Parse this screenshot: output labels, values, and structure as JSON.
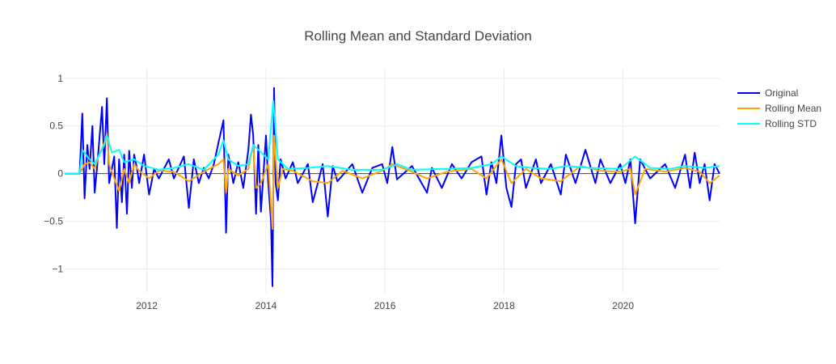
{
  "chart_data": {
    "type": "line",
    "title": "Rolling Mean and Standard Deviation",
    "xlabel": "",
    "ylabel": "",
    "x_range": [
      "2010-08-15",
      "2021-08-15"
    ],
    "ylim": [
      -1.25,
      1.1
    ],
    "x_ticks": [
      "2012",
      "2014",
      "2016",
      "2018",
      "2020"
    ],
    "y_ticks": [
      {
        "value": 1,
        "label": "1"
      },
      {
        "value": 0.5,
        "label": "0.5"
      },
      {
        "value": 0,
        "label": "0"
      },
      {
        "value": -0.5,
        "label": "−0.5"
      },
      {
        "value": -1,
        "label": "−1"
      }
    ],
    "grid": true,
    "legend_position": "top-right",
    "series": [
      {
        "name": "Original",
        "color": "#0000ff",
        "points": [
          [
            "2010-08-15",
            0
          ],
          [
            "2010-11-15",
            0
          ],
          [
            "2010-12-01",
            0.63
          ],
          [
            "2010-12-15",
            -0.26
          ],
          [
            "2011-01-01",
            0.3
          ],
          [
            "2011-01-15",
            0.05
          ],
          [
            "2011-02-01",
            0.5
          ],
          [
            "2011-02-15",
            -0.2
          ],
          [
            "2011-03-01",
            0.05
          ],
          [
            "2011-04-01",
            0.7
          ],
          [
            "2011-04-15",
            0.1
          ],
          [
            "2011-05-01",
            0.79
          ],
          [
            "2011-05-15",
            -0.1
          ],
          [
            "2011-06-15",
            0.18
          ],
          [
            "2011-07-01",
            -0.57
          ],
          [
            "2011-07-15",
            0.15
          ],
          [
            "2011-08-01",
            -0.3
          ],
          [
            "2011-08-15",
            0.2
          ],
          [
            "2011-09-01",
            -0.42
          ],
          [
            "2011-09-15",
            0.24
          ],
          [
            "2011-10-01",
            -0.15
          ],
          [
            "2011-10-15",
            0.2
          ],
          [
            "2011-11-01",
            0.06
          ],
          [
            "2011-11-15",
            -0.1
          ],
          [
            "2011-12-15",
            0.2
          ],
          [
            "2012-01-15",
            -0.22
          ],
          [
            "2012-02-15",
            0.05
          ],
          [
            "2012-03-15",
            -0.05
          ],
          [
            "2012-05-15",
            0.15
          ],
          [
            "2012-06-15",
            -0.05
          ],
          [
            "2012-08-15",
            0.18
          ],
          [
            "2012-09-15",
            -0.36
          ],
          [
            "2012-10-15",
            0.15
          ],
          [
            "2012-11-15",
            -0.1
          ],
          [
            "2012-12-15",
            0.06
          ],
          [
            "2013-01-15",
            -0.05
          ],
          [
            "2013-02-15",
            0.1
          ],
          [
            "2013-03-15",
            0.32
          ],
          [
            "2013-04-15",
            0.56
          ],
          [
            "2013-05-01",
            -0.62
          ],
          [
            "2013-05-15",
            0.2
          ],
          [
            "2013-06-15",
            -0.1
          ],
          [
            "2013-07-15",
            0.12
          ],
          [
            "2013-08-15",
            -0.15
          ],
          [
            "2013-09-15",
            0.25
          ],
          [
            "2013-10-01",
            0.62
          ],
          [
            "2013-10-15",
            0.4
          ],
          [
            "2013-11-01",
            -0.42
          ],
          [
            "2013-11-15",
            0.3
          ],
          [
            "2013-12-01",
            -0.4
          ],
          [
            "2014-01-01",
            0.4
          ],
          [
            "2014-01-15",
            -0.1
          ],
          [
            "2014-02-01",
            -0.5
          ],
          [
            "2014-02-10",
            -1.18
          ],
          [
            "2014-02-20",
            0.9
          ],
          [
            "2014-03-01",
            -0.1
          ],
          [
            "2014-03-15",
            -0.28
          ],
          [
            "2014-04-01",
            0.15
          ],
          [
            "2014-05-01",
            -0.05
          ],
          [
            "2014-06-15",
            0.12
          ],
          [
            "2014-07-15",
            -0.1
          ],
          [
            "2014-09-15",
            0.1
          ],
          [
            "2014-10-15",
            -0.3
          ],
          [
            "2014-11-15",
            -0.1
          ],
          [
            "2014-12-15",
            0.1
          ],
          [
            "2015-01-15",
            -0.45
          ],
          [
            "2015-02-15",
            0.08
          ],
          [
            "2015-03-15",
            -0.08
          ],
          [
            "2015-06-15",
            0.1
          ],
          [
            "2015-08-15",
            -0.2
          ],
          [
            "2015-10-15",
            0.06
          ],
          [
            "2015-12-15",
            0.1
          ],
          [
            "2016-01-15",
            -0.1
          ],
          [
            "2016-02-15",
            0.28
          ],
          [
            "2016-03-15",
            -0.06
          ],
          [
            "2016-06-15",
            0.08
          ],
          [
            "2016-09-15",
            -0.2
          ],
          [
            "2016-10-15",
            0.06
          ],
          [
            "2016-12-15",
            -0.15
          ],
          [
            "2017-02-15",
            0.1
          ],
          [
            "2017-04-15",
            -0.05
          ],
          [
            "2017-06-15",
            0.12
          ],
          [
            "2017-08-15",
            0.18
          ],
          [
            "2017-09-15",
            -0.22
          ],
          [
            "2017-10-15",
            0.12
          ],
          [
            "2017-11-15",
            -0.1
          ],
          [
            "2017-12-15",
            0.4
          ],
          [
            "2018-01-15",
            -0.15
          ],
          [
            "2018-02-15",
            -0.35
          ],
          [
            "2018-03-15",
            0.1
          ],
          [
            "2018-04-15",
            0.15
          ],
          [
            "2018-05-15",
            -0.15
          ],
          [
            "2018-07-15",
            0.15
          ],
          [
            "2018-08-15",
            -0.1
          ],
          [
            "2018-10-15",
            0.1
          ],
          [
            "2018-12-15",
            -0.22
          ],
          [
            "2019-01-15",
            0.2
          ],
          [
            "2019-03-15",
            -0.1
          ],
          [
            "2019-05-15",
            0.25
          ],
          [
            "2019-07-15",
            -0.1
          ],
          [
            "2019-08-15",
            0.15
          ],
          [
            "2019-10-15",
            -0.1
          ],
          [
            "2019-12-15",
            0.1
          ],
          [
            "2020-01-15",
            -0.1
          ],
          [
            "2020-02-15",
            0.15
          ],
          [
            "2020-03-15",
            -0.52
          ],
          [
            "2020-04-15",
            0.15
          ],
          [
            "2020-06-15",
            -0.05
          ],
          [
            "2020-09-15",
            0.1
          ],
          [
            "2020-11-15",
            -0.15
          ],
          [
            "2021-01-15",
            0.2
          ],
          [
            "2021-02-15",
            -0.15
          ],
          [
            "2021-03-15",
            0.22
          ],
          [
            "2021-04-15",
            -0.1
          ],
          [
            "2021-05-15",
            0.1
          ],
          [
            "2021-06-15",
            -0.28
          ],
          [
            "2021-07-15",
            0.1
          ],
          [
            "2021-08-15",
            0.0
          ]
        ]
      },
      {
        "name": "Rolling Mean",
        "color": "#ffa500",
        "points": [
          [
            "2010-08-15",
            0
          ],
          [
            "2010-11-15",
            0
          ],
          [
            "2010-12-15",
            0.1
          ],
          [
            "2011-01-15",
            0.12
          ],
          [
            "2011-02-15",
            0.05
          ],
          [
            "2011-03-15",
            0.2
          ],
          [
            "2011-04-15",
            0.32
          ],
          [
            "2011-05-01",
            0.42
          ],
          [
            "2011-05-15",
            0.1
          ],
          [
            "2011-06-15",
            -0.05
          ],
          [
            "2011-07-15",
            -0.18
          ],
          [
            "2011-08-15",
            0.05
          ],
          [
            "2011-09-15",
            -0.1
          ],
          [
            "2011-10-15",
            0.1
          ],
          [
            "2011-11-15",
            0.03
          ],
          [
            "2012-01-15",
            -0.05
          ],
          [
            "2012-03-15",
            0.03
          ],
          [
            "2012-06-15",
            0.02
          ],
          [
            "2012-09-15",
            -0.08
          ],
          [
            "2012-12-15",
            0.02
          ],
          [
            "2013-03-15",
            0.1
          ],
          [
            "2013-04-15",
            0.15
          ],
          [
            "2013-05-01",
            -0.2
          ],
          [
            "2013-05-15",
            0.05
          ],
          [
            "2013-07-15",
            -0.02
          ],
          [
            "2013-09-15",
            0.05
          ],
          [
            "2013-10-15",
            0.3
          ],
          [
            "2013-11-01",
            -0.15
          ],
          [
            "2013-12-01",
            -0.1
          ],
          [
            "2014-01-15",
            0.1
          ],
          [
            "2014-02-10",
            -0.58
          ],
          [
            "2014-02-20",
            0.4
          ],
          [
            "2014-03-15",
            -0.15
          ],
          [
            "2014-04-15",
            0.05
          ],
          [
            "2014-06-15",
            0.03
          ],
          [
            "2014-10-15",
            -0.08
          ],
          [
            "2015-01-15",
            -0.1
          ],
          [
            "2015-04-15",
            0.03
          ],
          [
            "2015-08-15",
            -0.05
          ],
          [
            "2015-12-15",
            0.03
          ],
          [
            "2016-02-15",
            0.1
          ],
          [
            "2016-06-15",
            0.02
          ],
          [
            "2016-09-15",
            -0.05
          ],
          [
            "2017-01-15",
            0.02
          ],
          [
            "2017-06-15",
            0.05
          ],
          [
            "2017-09-15",
            -0.05
          ],
          [
            "2017-12-15",
            0.15
          ],
          [
            "2018-02-15",
            -0.1
          ],
          [
            "2018-05-15",
            0.05
          ],
          [
            "2018-08-15",
            -0.05
          ],
          [
            "2018-12-15",
            -0.08
          ],
          [
            "2019-04-15",
            0.08
          ],
          [
            "2019-08-15",
            0.03
          ],
          [
            "2019-12-15",
            0.02
          ],
          [
            "2020-02-15",
            0.05
          ],
          [
            "2020-03-15",
            -0.22
          ],
          [
            "2020-05-15",
            0.05
          ],
          [
            "2020-09-15",
            0.02
          ],
          [
            "2021-01-15",
            0.06
          ],
          [
            "2021-04-15",
            0.02
          ],
          [
            "2021-06-15",
            -0.1
          ],
          [
            "2021-08-15",
            -0.02
          ]
        ]
      },
      {
        "name": "Rolling STD",
        "color": "#00ffff",
        "points": [
          [
            "2010-08-15",
            0
          ],
          [
            "2010-11-15",
            0
          ],
          [
            "2010-12-01",
            0.25
          ],
          [
            "2011-01-15",
            0.15
          ],
          [
            "2011-02-15",
            0.1
          ],
          [
            "2011-03-15",
            0.2
          ],
          [
            "2011-04-15",
            0.3
          ],
          [
            "2011-05-01",
            0.4
          ],
          [
            "2011-06-01",
            0.22
          ],
          [
            "2011-07-15",
            0.25
          ],
          [
            "2011-08-15",
            0.12
          ],
          [
            "2011-10-15",
            0.15
          ],
          [
            "2011-12-15",
            0.08
          ],
          [
            "2012-03-15",
            0.04
          ],
          [
            "2012-06-15",
            0.06
          ],
          [
            "2012-09-15",
            0.1
          ],
          [
            "2012-12-15",
            0.04
          ],
          [
            "2013-03-15",
            0.2
          ],
          [
            "2013-04-15",
            0.35
          ],
          [
            "2013-05-15",
            0.15
          ],
          [
            "2013-07-15",
            0.08
          ],
          [
            "2013-09-15",
            0.1
          ],
          [
            "2013-10-15",
            0.3
          ],
          [
            "2013-11-15",
            0.25
          ],
          [
            "2014-01-15",
            0.15
          ],
          [
            "2014-02-15",
            0.76
          ],
          [
            "2014-03-15",
            0.15
          ],
          [
            "2014-05-15",
            0.05
          ],
          [
            "2014-09-15",
            0.06
          ],
          [
            "2015-01-15",
            0.08
          ],
          [
            "2015-06-15",
            0.04
          ],
          [
            "2015-12-15",
            0.04
          ],
          [
            "2016-03-15",
            0.1
          ],
          [
            "2016-06-15",
            0.04
          ],
          [
            "2017-01-15",
            0.05
          ],
          [
            "2017-06-15",
            0.06
          ],
          [
            "2017-10-15",
            0.1
          ],
          [
            "2017-12-15",
            0.18
          ],
          [
            "2018-03-15",
            0.08
          ],
          [
            "2018-06-15",
            0.06
          ],
          [
            "2018-10-15",
            0.05
          ],
          [
            "2019-01-15",
            0.08
          ],
          [
            "2019-06-15",
            0.06
          ],
          [
            "2019-12-15",
            0.05
          ],
          [
            "2020-03-15",
            0.18
          ],
          [
            "2020-06-15",
            0.06
          ],
          [
            "2020-10-15",
            0.05
          ],
          [
            "2021-01-15",
            0.08
          ],
          [
            "2021-05-15",
            0.06
          ],
          [
            "2021-08-15",
            0.08
          ]
        ]
      }
    ]
  }
}
